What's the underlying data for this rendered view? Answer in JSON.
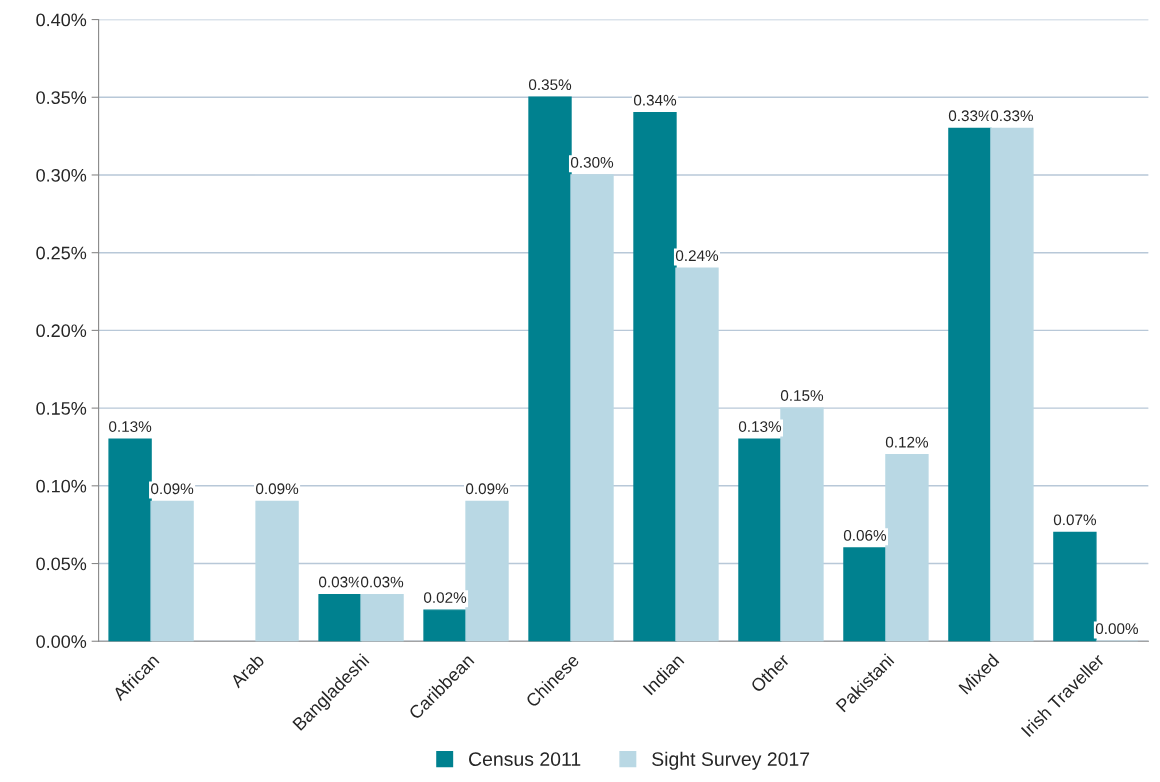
{
  "chart_data": {
    "type": "bar",
    "categories": [
      "African",
      "Arab",
      "Bangladeshi",
      "Caribbean",
      "Chinese",
      "Indian",
      "Other",
      "Pakistani",
      "Mixed",
      "Irish Traveller"
    ],
    "series": [
      {
        "name": "Census 2011",
        "color": "#00818f",
        "values": [
          0.13,
          null,
          0.03,
          0.02,
          0.35,
          0.34,
          0.13,
          0.06,
          0.33,
          0.07
        ],
        "value_labels": [
          "0.13%",
          null,
          "0.03%",
          "0.02%",
          "0.35%",
          "0.34%",
          "0.13%",
          "0.06%",
          "0.33%",
          "0.07%"
        ]
      },
      {
        "name": "Sight Survey 2017",
        "color": "#b9d8e4",
        "values": [
          0.09,
          0.09,
          0.03,
          0.09,
          0.3,
          0.24,
          0.15,
          0.12,
          0.33,
          0.0
        ],
        "value_labels": [
          "0.09%",
          "0.09%",
          "0.03%",
          "0.09%",
          "0.30%",
          "0.24%",
          "0.15%",
          "0.12%",
          "0.33%",
          "0.00%"
        ]
      }
    ],
    "ylim": [
      0,
      0.4
    ],
    "yticks": [
      {
        "value": 0,
        "label": "0.00%"
      },
      {
        "value": 0.05,
        "label": "0.05%"
      },
      {
        "value": 0.1,
        "label": "0.10%"
      },
      {
        "value": 0.15,
        "label": "0.15%"
      },
      {
        "value": 0.2,
        "label": "0.20%"
      },
      {
        "value": 0.25,
        "label": "0.25%"
      },
      {
        "value": 0.3,
        "label": "0.30%"
      },
      {
        "value": 0.35,
        "label": "0.35%"
      },
      {
        "value": 0.4,
        "label": "0.40%"
      }
    ],
    "grid": "y",
    "legend": "bottom"
  }
}
